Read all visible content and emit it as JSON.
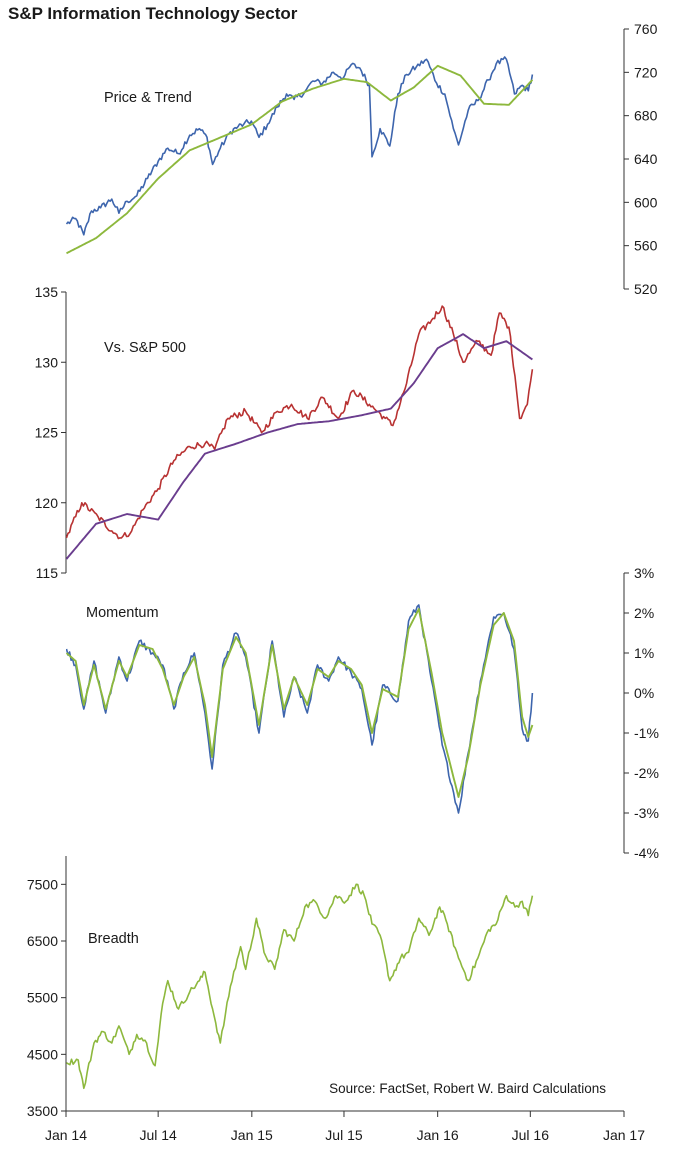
{
  "chart_data": [
    {
      "type": "line",
      "title": "S&P Information Technology Sector",
      "panel_label": "Price & Trend",
      "y_axis_side": "right",
      "ylim": [
        520,
        760
      ],
      "yticks": [
        520,
        560,
        600,
        640,
        680,
        720,
        760
      ],
      "ytick_labels": [
        "520",
        "560",
        "600",
        "640",
        "680",
        "720",
        "760"
      ],
      "series": [
        {
          "color": "#3d65ad",
          "x": [
            "2014-01-02",
            "2014-01-20",
            "2014-02-05",
            "2014-02-20",
            "2014-03-10",
            "2014-04-01",
            "2014-04-15",
            "2014-05-01",
            "2014-05-20",
            "2014-06-10",
            "2014-07-01",
            "2014-07-20",
            "2014-08-10",
            "2014-09-01",
            "2014-09-20",
            "2014-10-05",
            "2014-10-16",
            "2014-10-31",
            "2014-11-20",
            "2014-12-05",
            "2014-12-16",
            "2014-12-31",
            "2015-01-15",
            "2015-02-01",
            "2015-02-20",
            "2015-03-10",
            "2015-03-25",
            "2015-04-15",
            "2015-05-01",
            "2015-05-20",
            "2015-06-10",
            "2015-06-30",
            "2015-07-15",
            "2015-08-01",
            "2015-08-20",
            "2015-08-25",
            "2015-09-10",
            "2015-09-29",
            "2015-10-15",
            "2015-11-01",
            "2015-11-20",
            "2015-12-10",
            "2015-12-30",
            "2016-01-15",
            "2016-02-01",
            "2016-02-11",
            "2016-03-01",
            "2016-03-20",
            "2016-04-10",
            "2016-04-25",
            "2016-05-15",
            "2016-05-31",
            "2016-06-15",
            "2016-06-27",
            "2016-07-05"
          ],
          "values": [
            580,
            585,
            570,
            592,
            595,
            603,
            590,
            601,
            606,
            622,
            638,
            650,
            645,
            662,
            668,
            660,
            635,
            650,
            665,
            670,
            672,
            675,
            660,
            672,
            688,
            700,
            695,
            702,
            712,
            710,
            720,
            715,
            727,
            724,
            708,
            642,
            668,
            652,
            700,
            718,
            725,
            732,
            710,
            700,
            668,
            653,
            685,
            694,
            713,
            728,
            732,
            700,
            708,
            703,
            718
          ]
        },
        {
          "color": "#8db83d",
          "x": [
            "2014-01-02",
            "2014-03-01",
            "2014-05-01",
            "2014-07-01",
            "2014-09-01",
            "2014-11-01",
            "2015-01-01",
            "2015-03-01",
            "2015-05-01",
            "2015-07-01",
            "2015-08-15",
            "2015-10-01",
            "2015-11-15",
            "2016-01-01",
            "2016-02-15",
            "2016-04-01",
            "2016-05-20",
            "2016-07-05"
          ],
          "values": [
            553,
            567,
            590,
            622,
            648,
            660,
            672,
            693,
            705,
            714,
            711,
            694,
            706,
            726,
            717,
            691,
            690,
            713
          ]
        }
      ]
    },
    {
      "type": "line",
      "panel_label": "Vs. S&P 500",
      "y_axis_side": "left",
      "ylim": [
        115,
        135
      ],
      "yticks": [
        115,
        120,
        125,
        130,
        135
      ],
      "ytick_labels": [
        "115",
        "120",
        "125",
        "130",
        "135"
      ],
      "series": [
        {
          "color": "#b83232",
          "x": [
            "2014-01-02",
            "2014-02-01",
            "2014-03-05",
            "2014-04-01",
            "2014-04-20",
            "2014-05-10",
            "2014-06-01",
            "2014-07-01",
            "2014-08-01",
            "2014-09-01",
            "2014-10-01",
            "2014-10-20",
            "2014-11-15",
            "2014-12-20",
            "2015-01-20",
            "2015-02-20",
            "2015-03-20",
            "2015-04-20",
            "2015-05-20",
            "2015-06-20",
            "2015-07-20",
            "2015-08-20",
            "2015-09-20",
            "2015-10-05",
            "2015-11-01",
            "2015-11-25",
            "2015-12-20",
            "2016-01-10",
            "2016-02-01",
            "2016-02-20",
            "2016-03-20",
            "2016-04-15",
            "2016-05-01",
            "2016-05-20",
            "2016-06-01",
            "2016-06-10",
            "2016-06-25",
            "2016-07-05"
          ],
          "values": [
            117.5,
            120,
            119,
            118,
            117.5,
            118,
            119.5,
            121,
            123,
            124,
            124.2,
            123.8,
            126,
            126.5,
            125,
            126.5,
            127,
            126,
            127.5,
            126,
            128,
            127,
            126,
            125.5,
            128.5,
            132,
            133,
            134,
            132,
            130,
            131.5,
            130.5,
            133.5,
            132.5,
            129,
            126,
            127,
            129.5
          ]
        },
        {
          "color": "#6a3d8e",
          "x": [
            "2014-01-02",
            "2014-03-01",
            "2014-05-01",
            "2014-07-01",
            "2014-08-20",
            "2014-10-01",
            "2014-12-01",
            "2015-02-01",
            "2015-04-01",
            "2015-06-01",
            "2015-08-01",
            "2015-10-01",
            "2015-11-15",
            "2016-01-01",
            "2016-02-20",
            "2016-04-01",
            "2016-05-15",
            "2016-07-05"
          ],
          "values": [
            116,
            118.5,
            119.2,
            118.8,
            121.5,
            123.5,
            124.2,
            125,
            125.6,
            125.8,
            126.2,
            126.7,
            128.5,
            131,
            132,
            131,
            131.5,
            130.2
          ]
        }
      ]
    },
    {
      "type": "line",
      "panel_label": "Momentum",
      "y_axis_side": "right",
      "ylim": [
        -4,
        3
      ],
      "yticks": [
        -4,
        -3,
        -2,
        -1,
        0,
        1,
        2,
        3
      ],
      "ytick_labels": [
        "-4%",
        "-3%",
        "-2%",
        "-1%",
        "0%",
        "1%",
        "2%",
        "3%"
      ],
      "series": [
        {
          "color": "#3d65ad",
          "x": [
            "2014-01-02",
            "2014-01-20",
            "2014-02-05",
            "2014-02-25",
            "2014-03-20",
            "2014-04-15",
            "2014-05-01",
            "2014-05-25",
            "2014-06-20",
            "2014-07-10",
            "2014-08-01",
            "2014-08-20",
            "2014-09-10",
            "2014-10-01",
            "2014-10-15",
            "2014-11-05",
            "2014-12-01",
            "2014-12-20",
            "2015-01-15",
            "2015-02-10",
            "2015-03-05",
            "2015-03-25",
            "2015-04-20",
            "2015-05-10",
            "2015-06-01",
            "2015-06-20",
            "2015-07-15",
            "2015-08-05",
            "2015-08-25",
            "2015-09-15",
            "2015-10-15",
            "2015-11-05",
            "2015-11-25",
            "2015-12-20",
            "2016-01-10",
            "2016-02-11",
            "2016-03-01",
            "2016-03-25",
            "2016-04-20",
            "2016-05-10",
            "2016-05-30",
            "2016-06-15",
            "2016-06-27",
            "2016-07-05"
          ],
          "values": [
            1.1,
            0.7,
            -0.4,
            0.8,
            -0.5,
            0.9,
            0.3,
            1.3,
            1.0,
            0.7,
            -0.4,
            0.5,
            1.0,
            -0.5,
            -1.9,
            0.7,
            1.5,
            0.9,
            -1.0,
            1.3,
            -0.6,
            0.4,
            -0.5,
            0.7,
            0.3,
            0.9,
            0.5,
            0.1,
            -1.3,
            0.2,
            -0.2,
            1.8,
            2.2,
            0.3,
            -1.3,
            -3.0,
            -1.5,
            0.3,
            1.9,
            2.0,
            1.1,
            -0.9,
            -1.2,
            0.0
          ]
        },
        {
          "color": "#8db83d",
          "x": [
            "2014-01-02",
            "2014-01-20",
            "2014-02-05",
            "2014-02-25",
            "2014-03-20",
            "2014-04-15",
            "2014-05-01",
            "2014-05-25",
            "2014-06-20",
            "2014-07-10",
            "2014-08-01",
            "2014-08-20",
            "2014-09-10",
            "2014-10-01",
            "2014-10-15",
            "2014-11-05",
            "2014-12-01",
            "2014-12-20",
            "2015-01-15",
            "2015-02-10",
            "2015-03-05",
            "2015-03-25",
            "2015-04-20",
            "2015-05-10",
            "2015-06-01",
            "2015-06-20",
            "2015-07-15",
            "2015-08-05",
            "2015-08-25",
            "2015-09-15",
            "2015-10-15",
            "2015-11-05",
            "2015-11-25",
            "2015-12-20",
            "2016-01-10",
            "2016-02-11",
            "2016-03-01",
            "2016-03-25",
            "2016-04-20",
            "2016-05-10",
            "2016-05-30",
            "2016-06-15",
            "2016-06-27",
            "2016-07-05"
          ],
          "values": [
            1.0,
            0.8,
            -0.3,
            0.7,
            -0.4,
            0.8,
            0.4,
            1.2,
            1.1,
            0.6,
            -0.3,
            0.4,
            0.9,
            -0.3,
            -1.6,
            0.6,
            1.4,
            1.0,
            -0.8,
            1.2,
            -0.4,
            0.4,
            -0.3,
            0.6,
            0.4,
            0.8,
            0.6,
            0.2,
            -1.0,
            0.1,
            -0.1,
            1.6,
            2.1,
            0.5,
            -1.0,
            -2.6,
            -1.6,
            0.2,
            1.7,
            2.0,
            1.3,
            -0.6,
            -1.1,
            -0.8
          ]
        }
      ]
    },
    {
      "type": "line",
      "panel_label": "Breadth",
      "y_axis_side": "left",
      "ylim": [
        3500,
        8000
      ],
      "yticks": [
        3500,
        4500,
        5500,
        6500,
        7500
      ],
      "ytick_labels": [
        "3500",
        "4500",
        "5500",
        "6500",
        "7500"
      ],
      "xlim": [
        "2014-01-01",
        "2017-01-01"
      ],
      "xticks": [
        "2014-01-01",
        "2014-07-01",
        "2015-01-01",
        "2015-07-01",
        "2016-01-01",
        "2016-07-01",
        "2017-01-01"
      ],
      "xtick_labels": [
        "Jan 14",
        "Jul 14",
        "Jan 15",
        "Jul 15",
        "Jan 16",
        "Jul 16",
        "Jan 17"
      ],
      "annotation": "Source: FactSet, Robert W. Baird Calculations",
      "series": [
        {
          "color": "#8db83d",
          "x": [
            "2014-01-02",
            "2014-01-25",
            "2014-02-05",
            "2014-02-25",
            "2014-03-15",
            "2014-04-01",
            "2014-04-15",
            "2014-05-05",
            "2014-05-20",
            "2014-06-05",
            "2014-06-25",
            "2014-07-10",
            "2014-07-20",
            "2014-08-10",
            "2014-09-01",
            "2014-09-20",
            "2014-10-01",
            "2014-10-16",
            "2014-10-31",
            "2014-11-20",
            "2014-12-10",
            "2014-12-20",
            "2015-01-10",
            "2015-01-25",
            "2015-02-15",
            "2015-03-05",
            "2015-03-25",
            "2015-04-15",
            "2015-05-05",
            "2015-05-25",
            "2015-06-15",
            "2015-07-05",
            "2015-07-25",
            "2015-08-10",
            "2015-08-25",
            "2015-09-10",
            "2015-09-29",
            "2015-10-20",
            "2015-11-05",
            "2015-11-25",
            "2015-12-15",
            "2016-01-05",
            "2016-01-20",
            "2016-02-11",
            "2016-03-01",
            "2016-03-20",
            "2016-04-10",
            "2016-04-25",
            "2016-05-15",
            "2016-06-01",
            "2016-06-15",
            "2016-06-27",
            "2016-07-05"
          ],
          "values": [
            4350,
            4400,
            3900,
            4700,
            4900,
            4700,
            5000,
            4500,
            4850,
            4750,
            4300,
            5400,
            5800,
            5300,
            5600,
            5800,
            5950,
            5300,
            4700,
            5700,
            6400,
            6000,
            6900,
            6300,
            6000,
            6700,
            6500,
            7100,
            7200,
            6900,
            7300,
            7200,
            7500,
            7300,
            6800,
            6600,
            5800,
            6200,
            6300,
            6900,
            6600,
            7100,
            6800,
            6200,
            5800,
            6200,
            6700,
            6800,
            7300,
            7100,
            7200,
            6950,
            7300
          ]
        }
      ]
    }
  ]
}
